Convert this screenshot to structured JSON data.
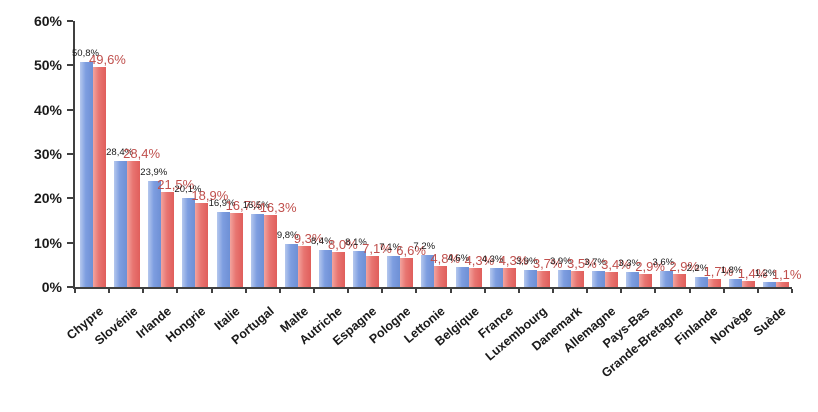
{
  "chart_data": {
    "type": "bar",
    "title": "",
    "xlabel": "",
    "ylabel": "",
    "ylim": [
      0,
      60
    ],
    "y_ticks": [
      "0%",
      "10%",
      "20%",
      "30%",
      "40%",
      "50%",
      "60%"
    ],
    "grid": "off",
    "legend": "none",
    "value_label_format": "one-decimal-comma-percent",
    "categories": [
      "Chypre",
      "Slovénie",
      "Irlande",
      "Hongrie",
      "Italie",
      "Portugal",
      "Malte",
      "Autriche",
      "Espagne",
      "Pologne",
      "Lettonie",
      "Belgique",
      "France",
      "Luxembourg",
      "Danemark",
      "Allemagne",
      "Pays-Bas",
      "Grande-Bretagne",
      "Finlande",
      "Norvège",
      "Suède"
    ],
    "series": [
      {
        "name": "series-1-blue",
        "bar_color": "#7d9de0",
        "label_color": "#1a1a1a",
        "values": [
          50.8,
          28.4,
          23.9,
          20.1,
          16.9,
          16.5,
          9.8,
          8.4,
          8.1,
          7.1,
          7.2,
          4.6,
          4.3,
          3.9,
          3.9,
          3.7,
          3.3,
          3.6,
          2.2,
          1.8,
          1.2
        ]
      },
      {
        "name": "series-2-red",
        "bar_color": "#e87571",
        "label_color": "#c0504d",
        "values": [
          49.6,
          28.4,
          21.5,
          18.9,
          16.7,
          16.3,
          9.3,
          8.0,
          7.1,
          6.6,
          4.8,
          4.3,
          4.3,
          3.7,
          3.5,
          3.4,
          2.9,
          2.9,
          1.7,
          1.4,
          1.1
        ]
      }
    ],
    "colors": {
      "axis": "#404040",
      "background": "#ffffff"
    }
  }
}
